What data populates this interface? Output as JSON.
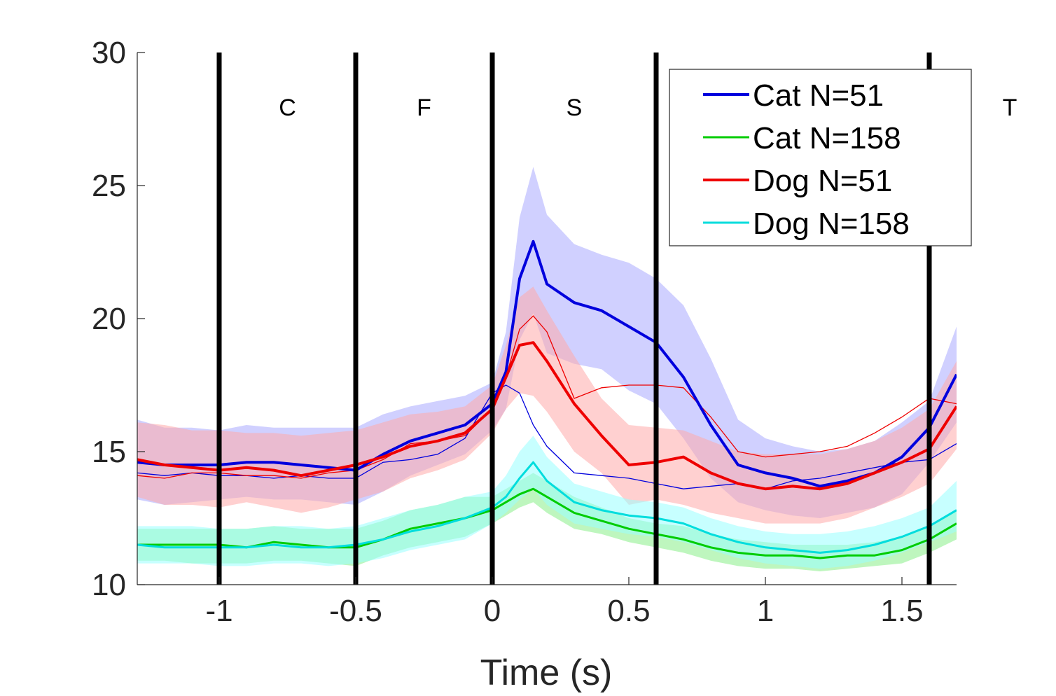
{
  "chart_data": {
    "type": "line",
    "title": "",
    "xlabel": "Time (s)",
    "ylabel": "",
    "xlim": [
      -1.3,
      1.7
    ],
    "ylim": [
      10,
      30
    ],
    "xticks": [
      -1,
      -0.5,
      0,
      0.5,
      1,
      1.5
    ],
    "xtick_labels": [
      "-1",
      "-0.5",
      "0",
      "0.5",
      "1",
      "1.5"
    ],
    "yticks": [
      10,
      15,
      20,
      25,
      30
    ],
    "ytick_labels": [
      "10",
      "15",
      "20",
      "25",
      "30"
    ],
    "grid": false,
    "legend_position": "top-right",
    "phase_lines": [
      -1,
      -0.5,
      0,
      0.6,
      1.6
    ],
    "phases": [
      {
        "label": "C",
        "x": -0.75
      },
      {
        "label": "F",
        "x": -0.25
      },
      {
        "label": "S",
        "x": 0.3
      },
      {
        "label": "T",
        "x": 1.9
      }
    ],
    "x": [
      -1.3,
      -1.2,
      -1.1,
      -1.0,
      -0.9,
      -0.8,
      -0.7,
      -0.6,
      -0.5,
      -0.4,
      -0.3,
      -0.2,
      -0.1,
      0.0,
      0.05,
      0.1,
      0.15,
      0.2,
      0.3,
      0.4,
      0.5,
      0.6,
      0.7,
      0.8,
      0.9,
      1.0,
      1.1,
      1.2,
      1.3,
      1.4,
      1.5,
      1.6,
      1.7
    ],
    "series": [
      {
        "name": "Cat N=51",
        "color": "#0000dd",
        "band_color": "#aaaaff",
        "width": 4,
        "values": [
          14.6,
          14.5,
          14.5,
          14.5,
          14.6,
          14.6,
          14.5,
          14.4,
          14.3,
          14.9,
          15.4,
          15.7,
          16.0,
          16.8,
          18.0,
          21.5,
          22.9,
          21.3,
          20.6,
          20.3,
          19.7,
          19.1,
          17.8,
          16.0,
          14.5,
          14.2,
          14.0,
          13.7,
          13.9,
          14.2,
          14.8,
          15.9,
          17.9
        ],
        "upper": [
          16.2,
          15.9,
          15.9,
          15.8,
          16.0,
          15.9,
          15.9,
          15.9,
          15.9,
          16.4,
          16.7,
          16.9,
          17.1,
          17.6,
          19.5,
          23.8,
          25.7,
          23.9,
          22.8,
          22.4,
          22.1,
          21.5,
          20.5,
          18.5,
          16.2,
          15.5,
          15.2,
          15.0,
          15.1,
          15.4,
          16.1,
          16.9,
          19.7
        ],
        "lower": [
          13.2,
          13.0,
          13.1,
          13.2,
          13.3,
          13.2,
          13.2,
          13.1,
          13.0,
          13.5,
          14.1,
          14.5,
          14.9,
          15.8,
          16.6,
          19.2,
          20.2,
          18.7,
          18.3,
          18.1,
          17.3,
          16.8,
          15.5,
          14.0,
          13.1,
          12.8,
          12.6,
          12.5,
          12.7,
          12.9,
          13.4,
          14.6,
          16.1
        ]
      },
      {
        "name": "Cat N=158",
        "color": "#00cc00",
        "band_color": "#88ee88",
        "width": 3,
        "values": [
          11.5,
          11.5,
          11.5,
          11.5,
          11.4,
          11.6,
          11.5,
          11.4,
          11.4,
          11.7,
          12.1,
          12.3,
          12.5,
          12.8,
          13.1,
          13.4,
          13.6,
          13.3,
          12.7,
          12.4,
          12.1,
          11.9,
          11.7,
          11.4,
          11.2,
          11.1,
          11.1,
          11.0,
          11.1,
          11.1,
          11.3,
          11.7,
          12.3
        ],
        "upper": [
          12.1,
          12.1,
          12.1,
          12.1,
          12.1,
          12.2,
          12.1,
          12.1,
          12.1,
          12.4,
          12.8,
          13.0,
          13.3,
          13.3,
          13.6,
          13.9,
          14.2,
          13.9,
          13.3,
          12.9,
          12.5,
          12.3,
          12.2,
          11.9,
          11.7,
          11.6,
          11.5,
          11.5,
          11.5,
          11.6,
          11.8,
          12.2,
          12.8
        ],
        "lower": [
          10.9,
          10.9,
          10.8,
          10.8,
          10.8,
          10.9,
          10.9,
          10.8,
          10.7,
          11.1,
          11.4,
          11.6,
          11.8,
          12.3,
          12.6,
          12.9,
          13.1,
          12.7,
          12.1,
          11.9,
          11.6,
          11.4,
          11.2,
          10.9,
          10.7,
          10.6,
          10.6,
          10.5,
          10.6,
          10.7,
          10.8,
          11.2,
          11.7
        ]
      },
      {
        "name": "Dog N=51",
        "color": "#ee0000",
        "band_color": "#ffaaaa",
        "width": 4,
        "values": [
          14.7,
          14.5,
          14.4,
          14.3,
          14.4,
          14.3,
          14.1,
          14.3,
          14.5,
          14.8,
          15.2,
          15.4,
          15.7,
          16.6,
          17.8,
          19.0,
          19.1,
          18.4,
          16.8,
          15.6,
          14.5,
          14.6,
          14.8,
          14.2,
          13.8,
          13.6,
          13.7,
          13.6,
          13.8,
          14.2,
          14.6,
          15.1,
          16.7
        ],
        "upper": [
          16.1,
          16.0,
          15.8,
          15.8,
          15.7,
          15.7,
          15.6,
          15.7,
          15.8,
          16.1,
          16.4,
          16.5,
          16.7,
          17.5,
          19.0,
          20.8,
          21.2,
          20.3,
          18.6,
          17.0,
          16.0,
          15.9,
          15.8,
          15.4,
          15.0,
          14.9,
          14.9,
          14.9,
          15.1,
          15.4,
          15.9,
          16.6,
          18.4
        ],
        "lower": [
          13.3,
          13.0,
          13.0,
          12.9,
          13.1,
          12.9,
          12.7,
          12.9,
          13.2,
          13.5,
          14.0,
          14.3,
          14.7,
          15.7,
          16.6,
          17.2,
          17.1,
          16.5,
          15.0,
          14.2,
          13.0,
          13.2,
          13.0,
          12.7,
          12.5,
          12.3,
          12.3,
          12.3,
          12.5,
          12.9,
          13.3,
          13.8,
          15.1
        ]
      },
      {
        "name": "Dog N=158",
        "color": "#00dddd",
        "band_color": "#99ffff",
        "width": 3,
        "values": [
          11.5,
          11.4,
          11.4,
          11.4,
          11.4,
          11.5,
          11.4,
          11.4,
          11.5,
          11.7,
          12.0,
          12.2,
          12.5,
          12.9,
          13.3,
          14.0,
          14.6,
          13.9,
          13.1,
          12.8,
          12.6,
          12.5,
          12.3,
          11.9,
          11.6,
          11.4,
          11.3,
          11.2,
          11.3,
          11.5,
          11.8,
          12.2,
          12.8
        ],
        "upper": [
          12.2,
          12.2,
          12.2,
          12.1,
          12.1,
          12.2,
          12.2,
          12.1,
          12.2,
          12.5,
          12.8,
          13.0,
          13.3,
          13.5,
          14.1,
          15.0,
          15.6,
          14.8,
          13.8,
          13.5,
          13.2,
          13.1,
          12.9,
          12.5,
          12.2,
          12.0,
          11.9,
          11.9,
          12.0,
          12.2,
          12.5,
          12.9,
          13.9
        ],
        "lower": [
          10.8,
          10.8,
          10.8,
          10.7,
          10.7,
          10.8,
          10.8,
          10.7,
          10.8,
          11.0,
          11.3,
          11.5,
          11.7,
          12.3,
          12.7,
          13.2,
          13.6,
          13.0,
          12.3,
          12.1,
          11.9,
          11.8,
          11.6,
          11.3,
          11.0,
          10.8,
          10.7,
          10.6,
          10.7,
          10.9,
          11.2,
          11.6,
          12.0
        ]
      }
    ],
    "thin_series": [
      {
        "color": "#0000dd",
        "values": [
          14.2,
          14.1,
          14.2,
          14.1,
          14.1,
          14.0,
          14.1,
          14.0,
          14.0,
          14.6,
          14.7,
          14.9,
          15.5,
          17.2,
          17.5,
          17.2,
          16.0,
          15.2,
          14.2,
          14.1,
          14.0,
          13.8,
          13.6,
          13.7,
          13.8,
          13.6,
          13.9,
          14.0,
          14.2,
          14.4,
          14.6,
          14.7,
          15.3
        ]
      },
      {
        "color": "#ee0000",
        "values": [
          14.1,
          14.0,
          14.2,
          14.2,
          14.1,
          14.1,
          14.0,
          14.2,
          14.3,
          14.7,
          15.3,
          15.4,
          15.6,
          16.6,
          17.8,
          19.6,
          20.1,
          19.5,
          17.0,
          17.4,
          17.5,
          17.5,
          17.4,
          16.3,
          15.0,
          14.8,
          14.9,
          15.0,
          15.2,
          15.7,
          16.3,
          17.0,
          16.8
        ]
      }
    ]
  }
}
